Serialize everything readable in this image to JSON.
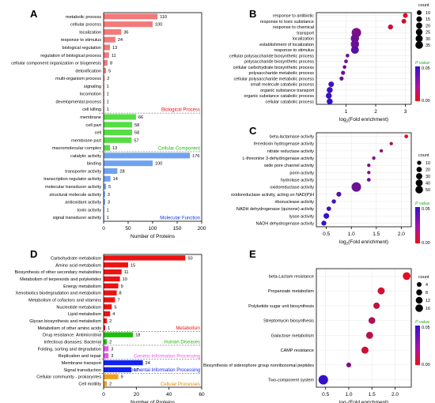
{
  "panels": [
    {
      "letter": "A"
    },
    {
      "letter": "B"
    },
    {
      "letter": "C"
    },
    {
      "letter": "D"
    },
    {
      "letter": "E"
    }
  ],
  "chart_data": [
    {
      "panel": "A",
      "type": "bar",
      "orientation": "horizontal",
      "xlabel": "Number of Proteins",
      "xlim": [
        0,
        200
      ],
      "xticks": [
        "0",
        "50",
        "100",
        "150",
        "200"
      ],
      "groups": [
        {
          "name": "Biological Process",
          "color": "#f27a7a",
          "label_color": "#ee1111",
          "categories": [
            "metabolic process",
            "cellular process",
            "localization",
            "response to stimulus",
            "biological regulation",
            "regulation of biological process",
            "cellular component organization or biogenesis",
            "detoxification",
            "multi-organism process",
            "signaling",
            "locomotion",
            "developmental process",
            "cell killing"
          ],
          "values": [
            110,
            100,
            36,
            24,
            13,
            11,
            8,
            5,
            2,
            1,
            1,
            1,
            1
          ],
          "labels": [
            "110",
            "100",
            "36",
            "24",
            "13",
            "11",
            "8",
            "5",
            "2",
            "1",
            "1",
            "1",
            "1"
          ]
        },
        {
          "name": "Cellular Component",
          "color": "#55dd44",
          "label_color": "#22bb11",
          "categories": [
            "membrane",
            "cell part",
            "cell",
            "membrane part",
            "macromolecular complex"
          ],
          "values": [
            66,
            58,
            58,
            57,
            13
          ],
          "labels": [
            "66",
            "58",
            "58",
            "57",
            "13"
          ]
        },
        {
          "name": "Molecular Function",
          "color": "#6ea2f0",
          "label_color": "#1133ee",
          "categories": [
            "catalytic activity",
            "binding",
            "transporter activity",
            "transcription regulator activity",
            "molecular transducer activity",
            "structural molecule activity",
            "antioxidant activity",
            "toxin activity",
            "signal transducer activity"
          ],
          "values": [
            176,
            100,
            28,
            14,
            5,
            3,
            3,
            1,
            1
          ],
          "labels": [
            "176",
            "100",
            "28",
            "14",
            "5",
            "3",
            "3",
            "1",
            "1"
          ]
        }
      ]
    },
    {
      "panel": "B",
      "type": "scatter",
      "xlabel_main": "log",
      "xlabel_sub": "2",
      "xlabel_rest": "(Fold enrichment)",
      "xlim": [
        0,
        3.2
      ],
      "xticks": [
        1,
        2,
        3
      ],
      "categories": [
        "response to antibiotic",
        "response to toxic substance",
        "response to chemical",
        "transport",
        "localization",
        "establishment of localization",
        "response to stimulus",
        "cellular polysaccharide biosynthetic process",
        "polysaccharide biosynthetic process",
        "cellular carbohydrate biosynthetic process",
        "polysaccharide metabolic process",
        "cellular polysaccharide metabolic process",
        "small molecule catabolic process",
        "organic substance transport",
        "organic substance catabolic process",
        "cellular catabolic process"
      ],
      "x": [
        3.0,
        2.95,
        2.5,
        1.35,
        1.3,
        1.3,
        1.3,
        1.05,
        1.0,
        0.95,
        0.9,
        0.85,
        0.5,
        0.45,
        0.42,
        0.45
      ],
      "count": [
        5,
        5,
        6,
        35,
        25,
        25,
        22,
        2,
        2,
        2,
        3,
        3,
        8,
        10,
        10,
        10
      ],
      "p": [
        0.005,
        0.01,
        0.01,
        0.03,
        0.035,
        0.035,
        0.04,
        0.035,
        0.035,
        0.035,
        0.035,
        0.035,
        0.045,
        0.048,
        0.048,
        0.05
      ],
      "size_legend": {
        "title": "count",
        "values": [
          "10",
          "15",
          "20",
          "25",
          "30",
          "35"
        ]
      },
      "color_legend": {
        "title": "P value",
        "max": "0.05",
        "min": "0.00",
        "low_color": "#ee1111",
        "high_color": "#3311cc"
      }
    },
    {
      "panel": "C",
      "type": "scatter",
      "xlabel_main": "log",
      "xlabel_sub": "2",
      "xlabel_rest": "(Fold enrichment)",
      "xlim": [
        0.3,
        2.2
      ],
      "xticks": [
        0.5,
        1.0,
        1.5,
        2.0
      ],
      "tick_labels": [
        "0.5",
        "1.0",
        "1.5",
        "2.0"
      ],
      "categories": [
        "beta-lactamase activity",
        "ferredoxin hydrogenase activity",
        "nitrate reductase activity",
        "L-threonine 3-dehydrogenase activity",
        "wide pore channel activity",
        "porin activity",
        "hydrolase activity",
        "oxidoreductase activity",
        "oxidoreductase activity, acting on NAD(P)H",
        "ribonuclease activity",
        "NADH dehydrogenase (quinone) activity",
        "lyase activity",
        "NADH dehydrogenase activity"
      ],
      "x": [
        2.1,
        1.8,
        1.6,
        1.45,
        1.35,
        1.35,
        1.35,
        1.1,
        0.75,
        0.65,
        0.55,
        0.5,
        0.45
      ],
      "count": [
        3,
        2,
        2,
        2,
        2,
        2,
        3,
        50,
        8,
        5,
        6,
        12,
        8
      ],
      "p": [
        0.005,
        0.02,
        0.025,
        0.03,
        0.03,
        0.03,
        0.035,
        0.035,
        0.04,
        0.045,
        0.045,
        0.05,
        0.05
      ],
      "size_legend": {
        "title": "count",
        "values": [
          "10",
          "20",
          "30",
          "40",
          "50"
        ]
      },
      "color_legend": {
        "title": "P value",
        "max": "0.05",
        "min": "0.00",
        "low_color": "#ee1111",
        "high_color": "#3311cc"
      }
    },
    {
      "panel": "D",
      "type": "bar",
      "orientation": "horizontal",
      "xlabel": "Number of Proteins",
      "xlim": [
        0,
        60
      ],
      "xticks": [
        "0",
        "20",
        "40",
        "60"
      ],
      "groups": [
        {
          "name": "Metabolism",
          "color": "#ee1111",
          "label_color": "#ee1111",
          "categories": [
            "Carbohydrate metabolism",
            "Amino acid metabolism",
            "Biosynthesis of other secondary metabolites",
            "Metabolism of terpenoids and polyketides",
            "Energy metabolism",
            "Xenobiotics biodegradation and metabolism",
            "Metabolism of cofactors and vitamins",
            "Nucleotide metabolism",
            "Lipid metabolism",
            "Glycan biosynthesis and metabolism",
            "Metabolism of other amino acids"
          ],
          "values": [
            50,
            15,
            11,
            10,
            9,
            8,
            7,
            5,
            4,
            2,
            1
          ],
          "labels": [
            "50",
            "15",
            "11",
            "10",
            "9",
            "8",
            "7",
            "5",
            "4",
            "2",
            "1"
          ]
        },
        {
          "name": "Human Diseases",
          "color": "#22bb11",
          "label_color": "#22bb11",
          "categories": [
            "Drug resistance: Antimicrobial",
            "Infectious diseases: Bacterial"
          ],
          "values": [
            18,
            2
          ],
          "labels": [
            "18",
            "2"
          ]
        },
        {
          "name": "Genetic Information Processing",
          "color": "#ee55ee",
          "label_color": "#ee55ee",
          "categories": [
            "Folding, sorting and degradation",
            "Replication and repair"
          ],
          "values": [
            3,
            3
          ],
          "labels": [
            "3",
            "3"
          ]
        },
        {
          "name": "Environmental Information Processing",
          "color": "#1122ee",
          "label_color": "#1122ee",
          "categories": [
            "Membrane transport",
            "Signal transduction"
          ],
          "values": [
            24,
            17
          ],
          "labels": [
            "24",
            "17"
          ]
        },
        {
          "name": "Cellular Processes",
          "color": "#f0a020",
          "label_color": "#e08a00",
          "categories": [
            "Cellular community - prokaryotes",
            "Cell motility"
          ],
          "values": [
            9,
            2
          ],
          "labels": [
            "9",
            "2"
          ]
        }
      ]
    },
    {
      "panel": "E",
      "type": "scatter",
      "xlabel_main": "log",
      "xlabel_sub": "2",
      "xlabel_rest": "(Fold enrichment)",
      "xlim": [
        0.3,
        2.35
      ],
      "xticks": [
        0.5,
        1.0,
        1.5,
        2.0
      ],
      "tick_labels": [
        "0.5",
        "1.0",
        "1.5",
        "2.0"
      ],
      "categories": [
        "beta-Lactam resistance",
        "Propanoate metabolism",
        "Polyketide sugar unit biosynthesis",
        "Streptomycin biosynthesis",
        "Galactose metabolism",
        "CAMP resistance",
        "Biosynthesis of siderophore group nonribosomal peptides",
        "Two-component system"
      ],
      "x": [
        2.25,
        1.7,
        1.6,
        1.5,
        1.45,
        1.35,
        1.0,
        0.45
      ],
      "count": [
        9,
        7,
        5,
        6,
        7,
        7,
        2,
        16
      ],
      "p": [
        0.004,
        0.008,
        0.012,
        0.018,
        0.015,
        0.01,
        0.03,
        0.05
      ],
      "size_legend": {
        "title": "count",
        "values": [
          "4",
          "8",
          "12",
          "16"
        ]
      },
      "color_legend": {
        "title": "P value",
        "max": "0.05",
        "min": "0.00",
        "low_color": "#ee1111",
        "high_color": "#3311cc"
      }
    }
  ]
}
